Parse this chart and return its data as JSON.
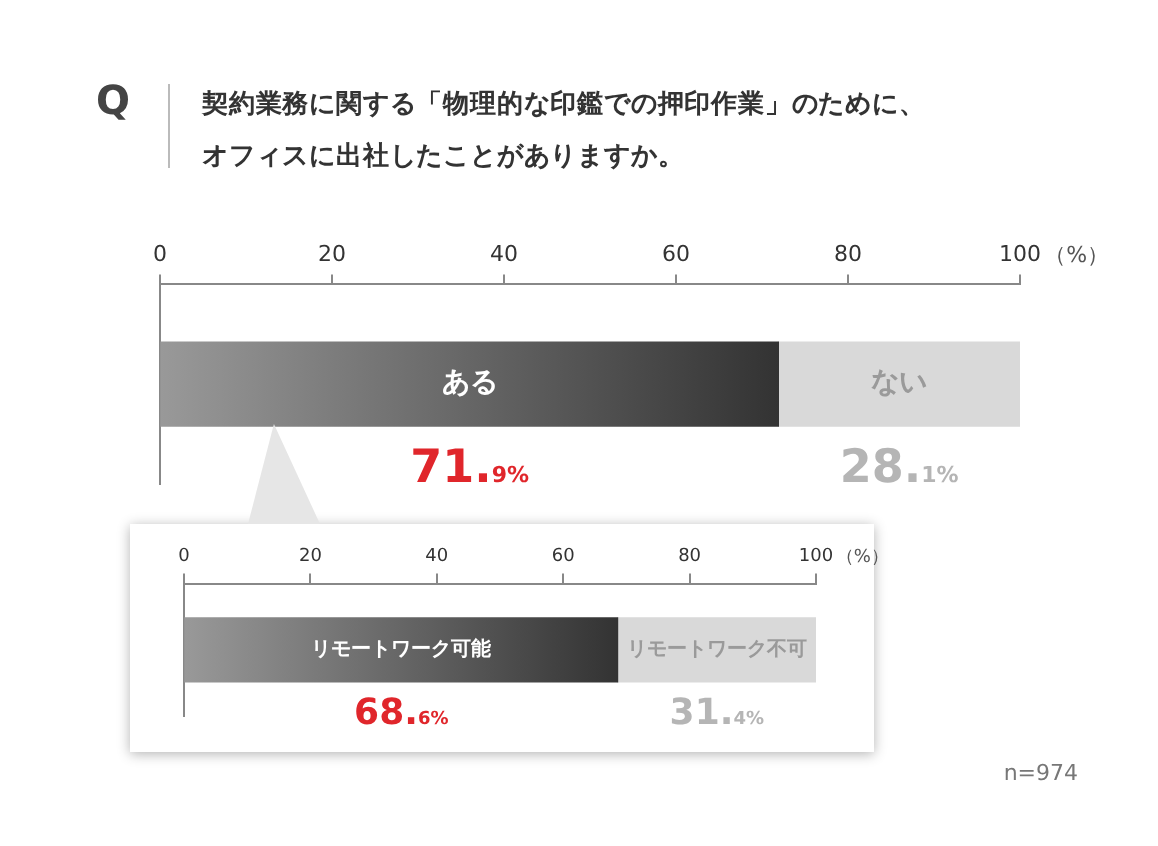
{
  "chart_data": [
    {
      "type": "bar",
      "orientation": "horizontal",
      "stacked": true,
      "title": "契約業務に関する「物理的な印鑑での押印作業」のために、オフィスに出社したことがありますか。",
      "xlabel": "（%）",
      "categories": [
        null
      ],
      "xlim": [
        0,
        100
      ],
      "xticks": [
        0,
        20,
        40,
        60,
        80,
        100
      ],
      "legend": false,
      "grid": false,
      "series": [
        {
          "name": "ある",
          "color": "#333333",
          "values": [
            71.9
          ],
          "value_labels": [
            "71.9%"
          ]
        },
        {
          "name": "ない",
          "color": "#d9d9d9",
          "values": [
            28.1
          ],
          "value_labels": [
            "28.1%"
          ]
        }
      ],
      "annotations": [
        "Q",
        "n=974"
      ]
    },
    {
      "type": "bar",
      "orientation": "horizontal",
      "stacked": true,
      "xlabel": "（%）",
      "categories": [
        null
      ],
      "xlim": [
        0,
        100
      ],
      "xticks": [
        0,
        20,
        40,
        60,
        80,
        100
      ],
      "legend": false,
      "grid": false,
      "series": [
        {
          "name": "リモートワーク可能",
          "color": "#333333",
          "values": [
            68.6
          ],
          "value_labels": [
            "68.6%"
          ]
        },
        {
          "name": "リモートワーク不可",
          "color": "#d9d9d9",
          "values": [
            31.4
          ],
          "value_labels": [
            "31.4%"
          ]
        }
      ]
    }
  ]
}
